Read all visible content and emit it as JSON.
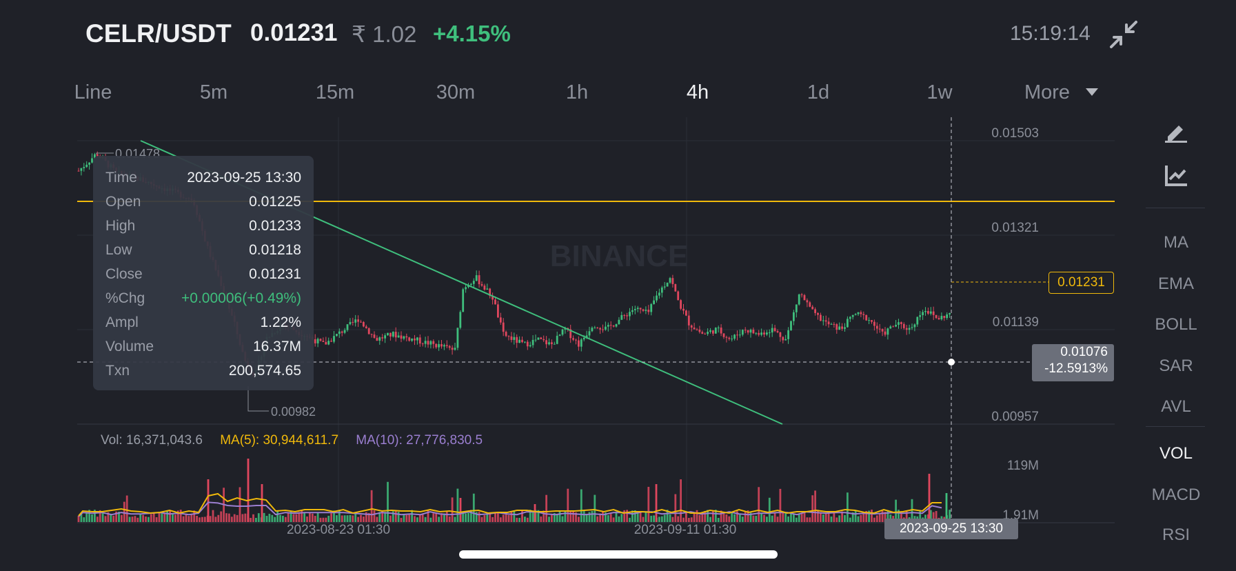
{
  "header": {
    "symbol": "CELR/USDT",
    "price": "0.01231",
    "inr_price": "₹ 1.02",
    "change_pct": "+4.15%",
    "time": "15:19:14"
  },
  "timeframes": [
    {
      "label": "Line",
      "active": false
    },
    {
      "label": "5m",
      "active": false
    },
    {
      "label": "15m",
      "active": false
    },
    {
      "label": "30m",
      "active": false
    },
    {
      "label": "1h",
      "active": false
    },
    {
      "label": "4h",
      "active": true
    },
    {
      "label": "1d",
      "active": false
    },
    {
      "label": "1w",
      "active": false
    },
    {
      "label": "More",
      "active": false
    }
  ],
  "chart": {
    "watermark": "BINANCE",
    "y_axis_labels": [
      "0.01503",
      "0.01321",
      "0.01139",
      "0.00957"
    ],
    "high_marker": "0.01478",
    "low_marker": "0.00982",
    "current_price_tag": "0.01231",
    "crosshair_price": "0.01076",
    "crosshair_pct": "-12.5913%",
    "crosshair_date": "2023-09-25 13:30",
    "x_axis_labels": [
      "2023-08-23 01:30",
      "2023-09-11 01:30"
    ]
  },
  "tooltip": [
    {
      "key": "Time",
      "value": "2023-09-25 13:30",
      "color": "#eef0f3"
    },
    {
      "key": "Open",
      "value": "0.01225",
      "color": "#eef0f3"
    },
    {
      "key": "High",
      "value": "0.01233",
      "color": "#eef0f3"
    },
    {
      "key": "Low",
      "value": "0.01218",
      "color": "#eef0f3"
    },
    {
      "key": "Close",
      "value": "0.01231",
      "color": "#eef0f3"
    },
    {
      "key": "%Chg",
      "value": "+0.00006(+0.49%)",
      "color": "#3fbf7d"
    },
    {
      "key": "Ampl",
      "value": "1.22%",
      "color": "#eef0f3"
    },
    {
      "key": "Volume",
      "value": "16.37M",
      "color": "#eef0f3"
    },
    {
      "key": "Txn",
      "value": "200,574.65",
      "color": "#eef0f3"
    }
  ],
  "volume": {
    "vol": "Vol: 16,371,043.6",
    "ma5": "MA(5): 30,944,611.7",
    "ma10": "MA(10): 27,776,830.5",
    "y_labels": [
      "119M",
      "1.91M"
    ]
  },
  "sidebar": {
    "tools": [
      "draw-icon",
      "chart-indicator-icon"
    ],
    "indicators": [
      {
        "label": "MA",
        "active": false
      },
      {
        "label": "EMA",
        "active": false
      },
      {
        "label": "BOLL",
        "active": false
      },
      {
        "label": "SAR",
        "active": false
      },
      {
        "label": "AVL",
        "active": false
      },
      {
        "label": "VOL",
        "active": true
      },
      {
        "label": "MACD",
        "active": false
      },
      {
        "label": "RSI",
        "active": false
      }
    ]
  },
  "colors": {
    "up": "#3fbf7d",
    "down": "#e0475e",
    "accent": "#f0b90b",
    "trendline": "#3fbf7d",
    "ma5": "#f0b90b",
    "ma10": "#9b7fd1"
  }
}
